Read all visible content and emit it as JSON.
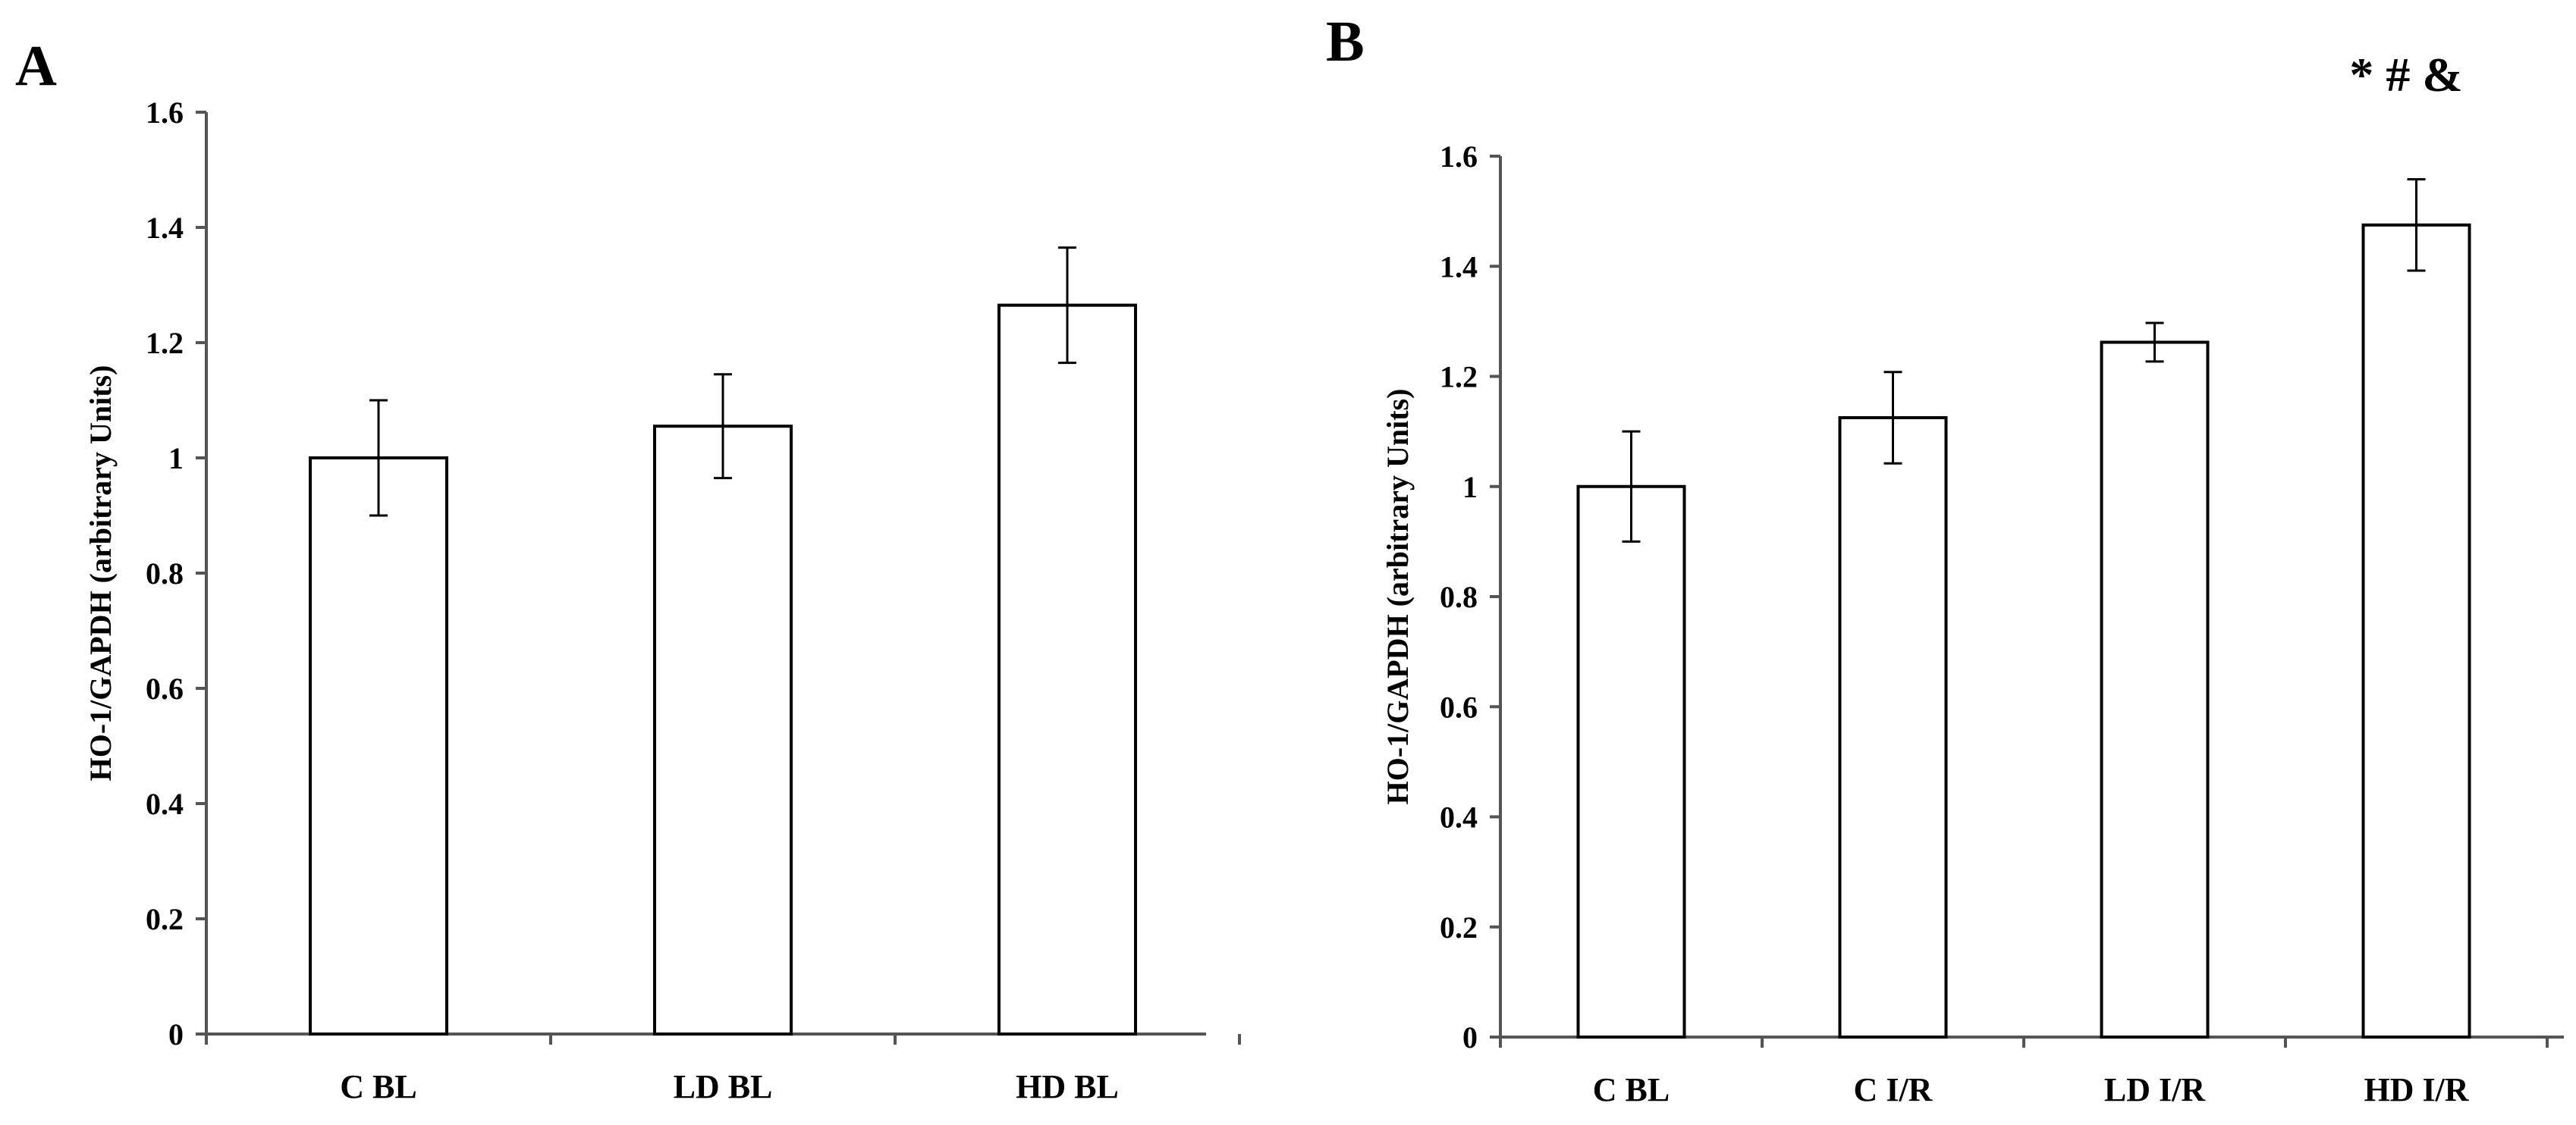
{
  "chart_data": [
    {
      "type": "bar",
      "panel": "A",
      "categories": [
        "C BL",
        "LD BL",
        "HD BL"
      ],
      "values": [
        1.0,
        1.055,
        1.265
      ],
      "errors": [
        0.1,
        0.09,
        0.1
      ],
      "title": "",
      "xlabel": "",
      "ylabel": "HO-1/GAPDH (arbitrary Units)",
      "ylim": [
        0,
        1.6
      ],
      "yticks": [
        0,
        0.2,
        0.4,
        0.6,
        0.8,
        1,
        1.2,
        1.4,
        1.6
      ],
      "grid": false,
      "annotation": ""
    },
    {
      "type": "bar",
      "panel": "B",
      "categories": [
        "C BL",
        "C I/R",
        "LD I/R",
        "HD I/R"
      ],
      "values": [
        1.0,
        1.125,
        1.262,
        1.475
      ],
      "errors": [
        0.1,
        0.083,
        0.035,
        0.083
      ],
      "title": "",
      "xlabel": "",
      "ylabel": "HO-1/GAPDH (arbitrary Units)",
      "ylim": [
        0,
        1.6
      ],
      "yticks": [
        0,
        0.2,
        0.4,
        0.6,
        0.8,
        1,
        1.2,
        1.4,
        1.6
      ],
      "grid": false,
      "annotation": "* # &"
    }
  ],
  "colors": {
    "bar_fill": "#ffffff",
    "stroke": "#000000",
    "axis": "#555555"
  }
}
